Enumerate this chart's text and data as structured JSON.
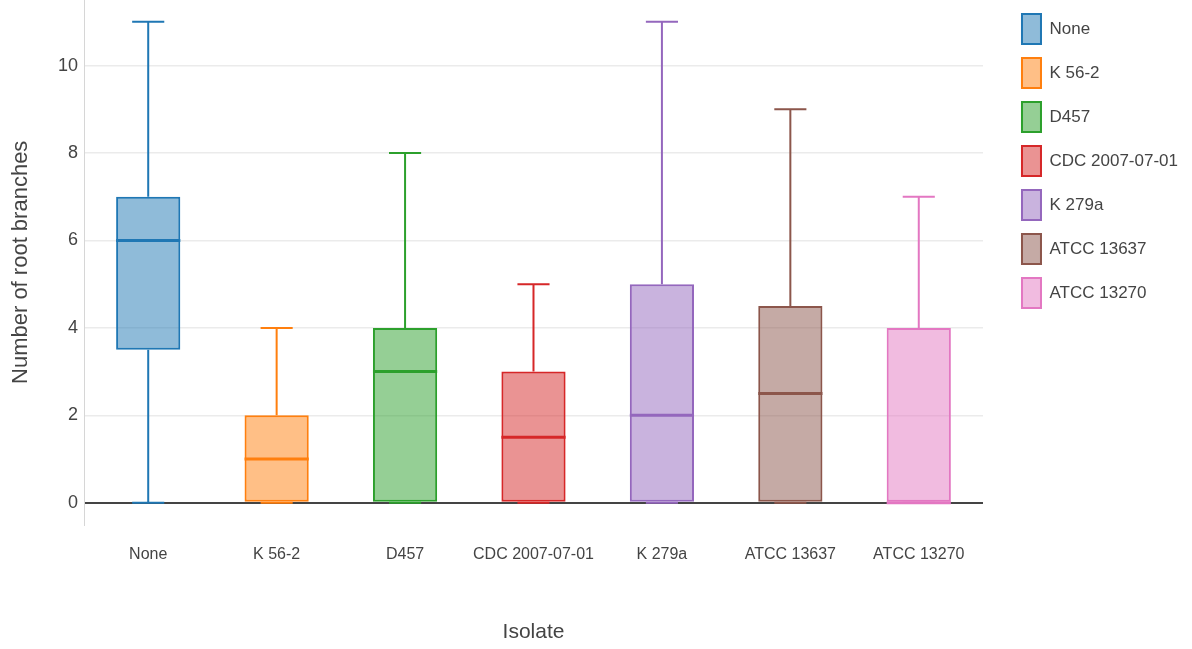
{
  "chart_data": {
    "type": "box",
    "xlabel": "Isolate",
    "ylabel": "Number of root branches",
    "categories": [
      "None",
      "K 56-2",
      "D457",
      "CDC 2007-07-01",
      "K 279a",
      "ATCC 13637",
      "ATCC 13270"
    ],
    "series": [
      {
        "name": "None",
        "color": "#1f77b4",
        "boxes": [
          {
            "low": 0,
            "q1": 3.5,
            "median": 6,
            "q3": 7,
            "high": 11
          },
          null,
          null,
          null,
          null,
          null,
          null
        ]
      },
      {
        "name": "K 56-2",
        "color": "#ff7f0e",
        "boxes": [
          null,
          {
            "low": 0,
            "q1": 0,
            "median": 1,
            "q3": 2,
            "high": 4
          },
          null,
          null,
          null,
          null,
          null
        ]
      },
      {
        "name": "D457",
        "color": "#2ca02c",
        "boxes": [
          null,
          null,
          {
            "low": 0,
            "q1": 0,
            "median": 3,
            "q3": 4,
            "high": 8
          },
          null,
          null,
          null,
          null
        ]
      },
      {
        "name": "CDC 2007-07-01",
        "color": "#d62728",
        "boxes": [
          null,
          null,
          null,
          {
            "low": 0,
            "q1": 0,
            "median": 1.5,
            "q3": 3,
            "high": 5
          },
          null,
          null,
          null
        ]
      },
      {
        "name": "K 279a",
        "color": "#9467bd",
        "boxes": [
          null,
          null,
          null,
          null,
          {
            "low": 0,
            "q1": 0,
            "median": 2,
            "q3": 5,
            "high": 11
          },
          null,
          null
        ]
      },
      {
        "name": "ATCC 13637",
        "color": "#8c564b",
        "boxes": [
          null,
          null,
          null,
          null,
          null,
          {
            "low": 0,
            "q1": 0,
            "median": 2.5,
            "q3": 4.5,
            "high": 9
          },
          null
        ]
      },
      {
        "name": "ATCC 13270",
        "color": "#e377c2",
        "boxes": [
          null,
          null,
          null,
          null,
          null,
          null,
          {
            "low": 0,
            "q1": 0,
            "median": 0,
            "q3": 4,
            "high": 7
          }
        ]
      }
    ],
    "ylim": [
      -0.5,
      11.5
    ],
    "yticks": [
      0,
      2,
      4,
      6,
      8,
      10
    ],
    "grid": "y",
    "legend": "top right"
  }
}
